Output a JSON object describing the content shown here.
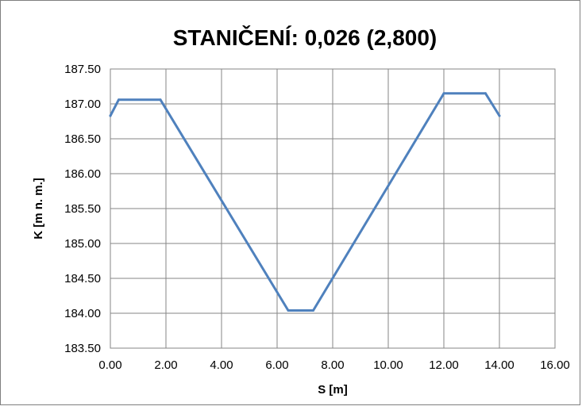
{
  "chart_data": {
    "type": "line",
    "title": "STANIČENÍ: 0,026 (2,800)",
    "xlabel": "S [m]",
    "ylabel": "K [m n. m.]",
    "xlim": [
      0,
      16
    ],
    "ylim": [
      183.5,
      187.5
    ],
    "x_ticks": [
      0,
      2,
      4,
      6,
      8,
      10,
      12,
      14,
      16
    ],
    "y_ticks": [
      183.5,
      184.0,
      184.5,
      185.0,
      185.5,
      186.0,
      186.5,
      187.0,
      187.5
    ],
    "x_tick_labels": [
      "0.00",
      "2.00",
      "4.00",
      "6.00",
      "8.00",
      "10.00",
      "12.00",
      "14.00",
      "16.00"
    ],
    "y_tick_labels": [
      "183.50",
      "184.00",
      "184.50",
      "185.00",
      "185.50",
      "186.00",
      "186.50",
      "187.00",
      "187.50"
    ],
    "grid": true,
    "legend": "none",
    "series": [
      {
        "color": "#4f81bd",
        "points": [
          [
            0.0,
            186.83
          ],
          [
            0.3,
            187.06
          ],
          [
            1.8,
            187.06
          ],
          [
            6.4,
            184.04
          ],
          [
            7.3,
            184.04
          ],
          [
            12.0,
            187.15
          ],
          [
            13.5,
            187.15
          ],
          [
            14.0,
            186.83
          ]
        ]
      }
    ]
  }
}
